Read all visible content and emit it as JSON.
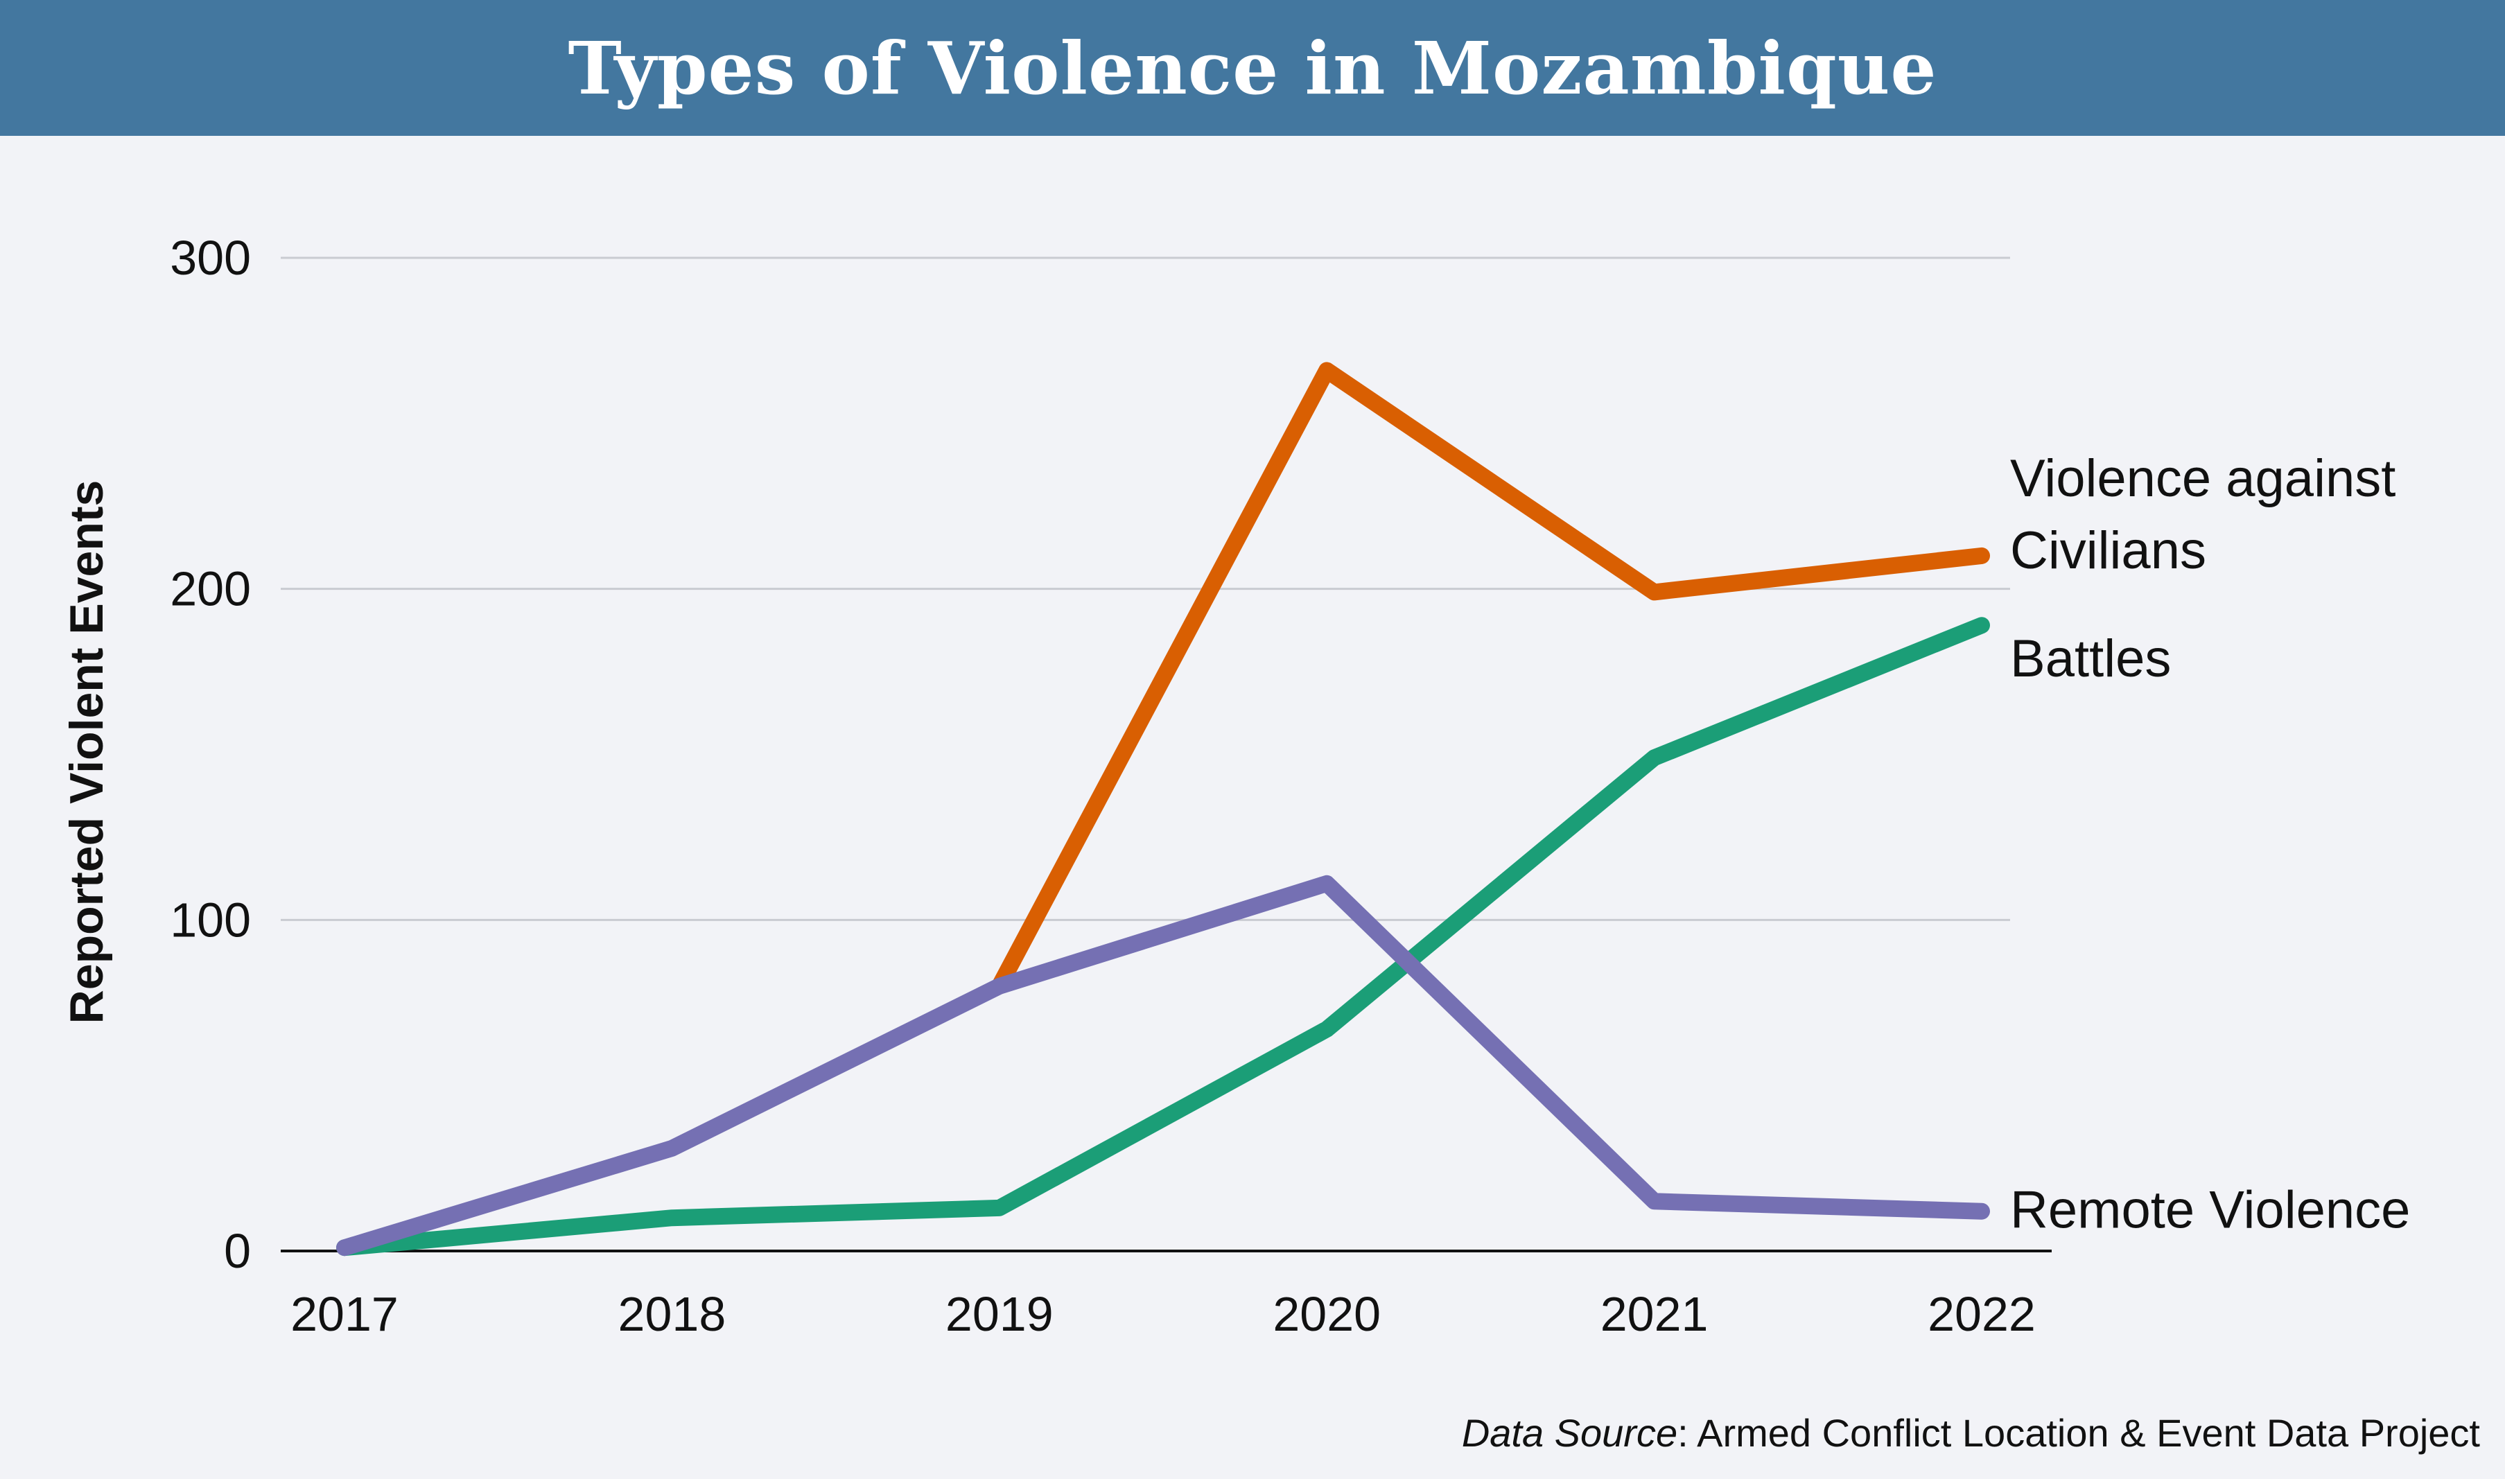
{
  "title": "Types of Violence in Mozambique",
  "source": {
    "prefix": "Data Source",
    "text": ": Armed Conflict Location & Event Data Project"
  },
  "colors": {
    "title_bar": "#43779f",
    "background": "#f2f3f7",
    "gridline": "#c9cbd1",
    "axis": "#111111"
  },
  "chart_data": {
    "type": "line",
    "title": "Types of Violence in Mozambique",
    "xlabel": "",
    "ylabel": "Reported Violent Events",
    "x": [
      "2017",
      "2018",
      "2019",
      "2020",
      "2021",
      "2022"
    ],
    "ylim": [
      0,
      300
    ],
    "yticks": [
      0,
      100,
      200,
      300
    ],
    "grid": true,
    "legend": "direct labels at line ends (right)",
    "series": [
      {
        "name": "Violence against Civilians",
        "label_lines": [
          "Violence against",
          "Civilians"
        ],
        "color": "#d95f02",
        "points": [
          [
            2019,
            80
          ],
          [
            2020,
            266
          ],
          [
            2021,
            199
          ],
          [
            2022,
            210
          ]
        ]
      },
      {
        "name": "Battles",
        "label_lines": [
          "Battles"
        ],
        "color": "#1b9e77",
        "points": [
          [
            2017,
            1
          ],
          [
            2018,
            10
          ],
          [
            2019,
            13
          ],
          [
            2020,
            67
          ],
          [
            2021,
            149
          ],
          [
            2022,
            189
          ]
        ]
      },
      {
        "name": "Remote Violence",
        "label_lines": [
          "Remote Violence"
        ],
        "color": "#7570b3",
        "points": [
          [
            2017,
            1
          ],
          [
            2018,
            31
          ],
          [
            2019,
            80
          ],
          [
            2020,
            111
          ],
          [
            2021,
            15
          ],
          [
            2022,
            12
          ]
        ]
      }
    ]
  }
}
